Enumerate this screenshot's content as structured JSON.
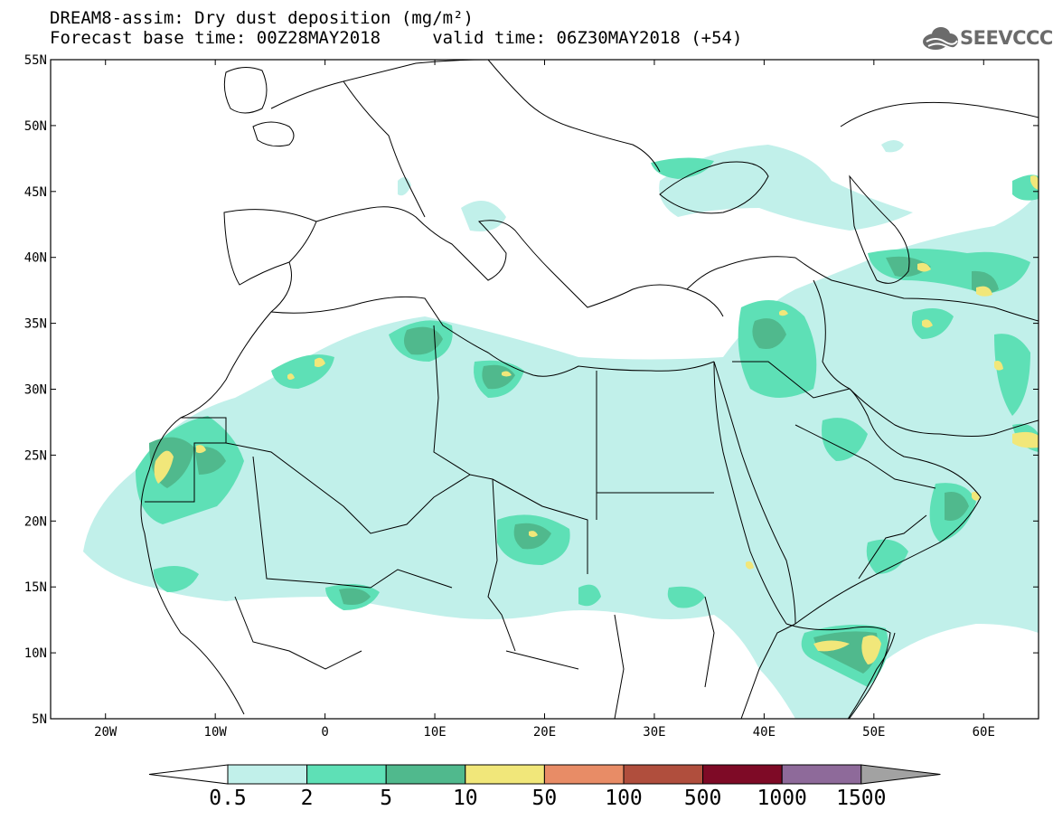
{
  "title": {
    "line1": "DREAM8-assim: Dry dust deposition (mg/m²)",
    "line2": "Forecast base time: 00Z28MAY2018     valid time: 06Z30MAY2018 (+54)"
  },
  "logo": {
    "text": "SEEVCCC",
    "icon": "cloud-icon"
  },
  "map": {
    "lon_range": [
      -25,
      65
    ],
    "lat_range": [
      5,
      55
    ],
    "lon_ticks": [
      {
        "value": -20,
        "label": "20W"
      },
      {
        "value": -10,
        "label": "10W"
      },
      {
        "value": 0,
        "label": "0"
      },
      {
        "value": 10,
        "label": "10E"
      },
      {
        "value": 20,
        "label": "20E"
      },
      {
        "value": 30,
        "label": "30E"
      },
      {
        "value": 40,
        "label": "40E"
      },
      {
        "value": 50,
        "label": "50E"
      },
      {
        "value": 60,
        "label": "60E"
      }
    ],
    "lat_ticks": [
      {
        "value": 55,
        "label": "55N"
      },
      {
        "value": 50,
        "label": "50N"
      },
      {
        "value": 45,
        "label": "45N"
      },
      {
        "value": 40,
        "label": "40N"
      },
      {
        "value": 35,
        "label": "35N"
      },
      {
        "value": 30,
        "label": "30N"
      },
      {
        "value": 25,
        "label": "25N"
      },
      {
        "value": 20,
        "label": "20N"
      },
      {
        "value": 15,
        "label": "15N"
      },
      {
        "value": 10,
        "label": "10N"
      },
      {
        "value": 5,
        "label": "5N"
      }
    ]
  },
  "colorbar": {
    "colors": [
      "#c1f0ea",
      "#5ee0b6",
      "#50b98d",
      "#f1e77a",
      "#e88c66",
      "#b04e3d",
      "#7e0a26",
      "#8e6a9a",
      "#a2a2a2"
    ],
    "end_left_color": "#ffffff",
    "labels": [
      "0.5",
      "2",
      "5",
      "10",
      "50",
      "100",
      "500",
      "1000",
      "1500"
    ]
  },
  "colors": {
    "land_outline": "#000000",
    "light": "#c1f0ea",
    "medium": "#5ee0b6",
    "dark": "#50b98d",
    "high": "#f1e77a"
  }
}
